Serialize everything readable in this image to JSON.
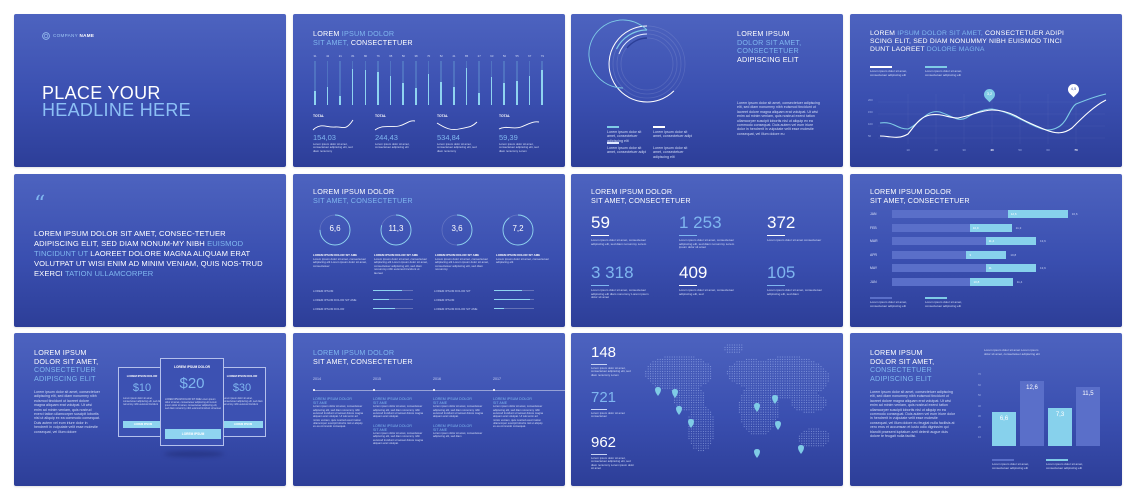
{
  "colors": {
    "slide_top": "#4d63bf",
    "slide_bottom": "#2d3e98",
    "accent_light_blue": "#7fcbe6",
    "accent_text_blue": "#7fb6ef",
    "white": "#ffffff",
    "bar_track": "#5a6fc9"
  },
  "slides": {
    "s1": {
      "company_icon": "globe-icon",
      "company_light": "COMPANY",
      "company_bold": "NAME",
      "headline_1": "PLACE YOUR",
      "headline_2": "HEADLINE HERE"
    },
    "s2": {
      "title_1a": "LOREM",
      "title_1b": "IPSUM DOLOR",
      "title_2a": "SIT AMET,",
      "title_2b": "CONSECTETUER",
      "bar_labels": [
        "31",
        "42",
        "21",
        "81",
        "80",
        "76",
        "65",
        "50",
        "38",
        "70",
        "52",
        "41",
        "85",
        "27",
        "63",
        "50",
        "55",
        "67",
        "79"
      ],
      "totals": [
        {
          "label": "TOTAL",
          "value": "154,03",
          "desc": "Lorem ipsum dolor sit amet, consectetuer adipiscing elit, sed diam nonummy"
        },
        {
          "label": "TOTAL",
          "value": "244,43",
          "desc": "Lorem ipsum dolor sit amet, consectetuer adipiscing elit"
        },
        {
          "label": "TOTAL",
          "value": "534,84",
          "desc": "Lorem ipsum dolor sit amet, consectetuer adipiscing elit, sed diam nonummy"
        },
        {
          "label": "TOTAL",
          "value": "59,39",
          "desc": "Lorem ipsum dolor sit amet, consectetuer adipiscing elit, sed diam nonummy Lorem"
        }
      ]
    },
    "s3": {
      "title_1": "LOREM IPSUM",
      "title_2": "DOLOR SIT AMET,",
      "title_3": "CONSECTETUER",
      "title_4": "ADIPISCING ELIT",
      "body": "Lorem ipsum dolor sit amet, consectetuer adipiscing elit, sed diam nonummy nibh euismod tincidunt ut laoreet dolore magna aliquam erat volutpat. Ut wisi enim ad minim veniam, quis nostrud exerci tation ullamcorper suscipit lobortis nisl ut aliquip ex ea commodo consequat. Duis autem vel eum iriure dolor in hendrerit in vulputate velit esse molestie consequat, vel illum dolore eu",
      "legend": [
        "Lorem ipsum dolor sit amet, consectetuer adipiscing elit",
        "Lorem ipsum dolor sit amet, consectetuer adipi",
        "Lorem ipsum dolor sit amet, consectetuer adipi",
        "Lorem ipsum dolor sit amet, consectetuer adipiscing elit"
      ]
    },
    "s4": {
      "title_a": "LOREM",
      "title_b": "IPSUM DOLOR SIT AMET,",
      "title_c": "CONSECTETUER ADIPI SCING ELIT, SED DIAM NONUMMY NIBH EUISMOD TINCI DUNT LAOREET",
      "title_d": "DOLORE MAGNA",
      "legend_1": "Lorem ipsum dolor sit amet, consectetuer adipiscing elit",
      "legend_2": "Lorem ipsum dolor sit amet, consectetuer adipiscing elit",
      "marker_1": "3,2",
      "marker_2": "4,5",
      "y_ticks": [
        "200",
        "150",
        "100",
        "50"
      ],
      "x_ticks": [
        "10",
        "20",
        "30",
        "40",
        "50",
        "60",
        "70"
      ]
    },
    "s5": {
      "quote_icon": "quote-icon",
      "q1": "LOREM IPSUM DOLOR SIT AMET, CONSEC-TETUER ADIPISCING ELIT, SED DIAM NONUM-MY NIBH",
      "q2": "EUISMOD TINCIDUNT UT",
      "q3": "LAOREET DOLORE MAGNA ALIQUAM ERAT VOLUTPAT UT WISI ENIM AD MINIM VENIAM, QUIS NOS-TRUD EXERCI",
      "q4": "TATION ULLAMCORPER"
    },
    "s6": {
      "title_1": "LOREM IPSUM DOLOR",
      "title_2": "SIT AMET, CONSECTETUER",
      "circles": [
        {
          "value": "6,6",
          "head": "LOREM IPSUM DOLOR SIT AME",
          "text": "Lorem ipsum dolor sit amet, consectetuer adipiscing elit Lorem ipsum dolor sit amet, consectetuer"
        },
        {
          "value": "11,3",
          "head": "LOREM IPSUM DOLOR SIT AME",
          "text": "Lorem ipsum dolor sit amet, consectetuer adipiscing elit Lorem ipsum dolor sit amet, consectetuer adipiscing elit, sed diam nonummy nibh euismod tincidunt ut laoreet"
        },
        {
          "value": "3,6",
          "head": "LOREM IPSUM DOLOR SIT AME",
          "text": "Lorem ipsum dolor sit amet, consectetuer adipiscing elit Lorem ipsum dolor sit amet, consectetuer adipiscing elit, sed diam nonummy"
        },
        {
          "value": "7,2",
          "head": "LOREM IPSUM DOLOR SIT AME",
          "text": "Lorem ipsum dolor sit amet, consectetuer adipiscing elit"
        }
      ],
      "bars": [
        {
          "label": "LOREM IPSUM",
          "pct": 72
        },
        {
          "label": "LOREM IPSUM DOLOR SIT AME",
          "pct": 40
        },
        {
          "label": "LOREM IPSUM DOLOR",
          "pct": 56
        },
        {
          "label": "LOREM IPSUM DOLOR SIT",
          "pct": 70
        },
        {
          "label": "LOREM IPSUM",
          "pct": 90
        },
        {
          "label": "LOREM IPSUM DOLOR SIT AME",
          "pct": 25
        }
      ]
    },
    "s7": {
      "title_1": "LOREM IPSUM DOLOR",
      "title_2": "SIT AMET, CONSECTETUER",
      "stats": [
        {
          "value": "59",
          "text": "Lorem ipsum dolor sit amet, consectetuer adipiscing elit, sed diam nonummy Lorem"
        },
        {
          "value": "1 253",
          "text": "Lorem ipsum dolor sit amet, consectetuer adipiscing elit, sed diam nonummy Lorem ipsum dolor sit amet"
        },
        {
          "value": "372",
          "text": "Lorem ipsum dolor sit amet consectetuer"
        },
        {
          "value": "3 318",
          "text": "Lorem ipsum dolor sit amet, consectetuer adipiscing elit diam nonummy Lorem ipsum dolor sit amet"
        },
        {
          "value": "409",
          "text": "Lorem ipsum dolor sit amet, consectetuer adipiscing elit, sed"
        },
        {
          "value": "105",
          "text": "Lorem ipsum dolor sit amet, consectetuer adipiscing elit, sed diam"
        }
      ]
    },
    "s8": {
      "title_1": "LOREM IPSUM DOLOR",
      "title_2": "SIT AMET, CONSECTETUER",
      "legend_1": "Lorem ipsum dolor sit amet, consectetuer adipiscing elit",
      "legend_2": "Lorem ipsum dolor sit amet, consectetuer adipiscing elit"
    },
    "s9": {
      "title_1": "LOREM IPSUM",
      "title_2": "DOLOR SIT AMET,",
      "title_3": "CONSECTETUER",
      "title_4": "ADIPISCING ELIT",
      "body": "Lorem ipsum dolor sit amet, consectetuer adipiscing elit, sed diam nonummy nibh euismod tincidunt ut laoreet dolore magna aliquam erat volutpat. Ut wisi enim ad minim veniam, quis nostrud exerci tation ullamcorper suscipit lobortis nisl ut aliquip ex ea commodo consequat. Duis autem vel eum iriure dolor in hendrerit in vulputate velit esse molestie consequat, vel illum dolore",
      "plans": [
        {
          "name": "LOREM IPSUM DOLOR",
          "price": "$10",
          "text": "Lorem ipsum dolor sit amet, consectetuer adipiscing elit, sed diam nonummy nibh euismod tincidunt",
          "button": "LOREM IPSUM"
        },
        {
          "name": "LOREM IPSUM DOLOR",
          "price": "$20",
          "text": "LOREM IPSUM DOLOR SIT AME Lorem ipsum dolor sit amet, consectetuer adipiscing elit Lorem ipsum dolor sit amet, consectetuer adipiscing elit, sed diam nonummy nibh euismod tincidunt ut laoreet",
          "button": "LOREM IPSUM"
        },
        {
          "name": "LOREM IPSUM DOLOR",
          "price": "$30",
          "text": "Lorem ipsum dolor sit amet, consectetuer adipiscing elit, sed diam nonummy nibh euismod tincidunt",
          "button": "LOREM IPSUM"
        }
      ]
    },
    "s10": {
      "title_1": "LOREM IPSUM DOLOR",
      "title_2": "SIT AMET, CONSECTETUER",
      "years": [
        "2014",
        "2015",
        "2016",
        "2017"
      ],
      "item_head_1": "LOREM IPSUM DOLOR",
      "item_head_2": "SIT AME",
      "item_text_long": "Lorem ipsum dolor sit amet, consectetuer adipiscing elit, sed diam nonummy nibh euismod tincidunt ut laoreet dolore magna aliquam erat volutpat. Ut wisi enim ad minim veniam, quis nostrud exerci tation ullamcorper suscipit lobortis nisl ut aliquip ex ea commodo consequat.",
      "item_text_mid": "Lorem ipsum dolor sit amet, consectetuer adipiscing elit, sed diam nonummy nibh euismod tincidunt ut laoreet dolore magna aliquam erat volutpat.",
      "item_text_short": "Lorem ipsum dolor sit amet, consectetuer adipiscing elit, sed diam"
    },
    "s11": {
      "stats": [
        {
          "value": "148",
          "text": "Lorem ipsum dolor sit amet, consectetuer adipiscing elit, sed diam nonummy Lorem"
        },
        {
          "value": "721",
          "text": "Lorem ipsum dolor sit amet consectetuer"
        },
        {
          "value": "962",
          "text": "Lorem ipsum dolor sit amet, consectetuer adipiscing elit, sed diam nonummy Lorem ipsum dolor sit amet"
        }
      ]
    },
    "s12": {
      "title_1": "LOREM IPSUM",
      "title_2": "DOLOR SIT AMET,",
      "title_3": "CONSECTETUER",
      "title_4": "ADIPISCING ELIT",
      "body": "Lorem ipsum dolor sit amet, consectetuer adipiscing elit, sed diam nonummy nibh euismod tincidunt ut laoreet dolore magna aliquam erat volutpat. Ut wisi enim ad minim veniam, quis nostrud exerci tation ullamcorper suscipit lobortis nisl ut aliquip ex ea commodo consequat. Duis autem vel eum iriure dolor in hendrerit in vulputate velit esse molestie consequat, vel illum dolore eu feugiat nulla facilisis at vero eros et accumsan et iusto odio dignissim qui blandit praesent luptatum zzril delenit augue duis dolore te feugait nulla facilisi.",
      "chart_note": "Lorem ipsum dolor sit amet Lorem ipsum dolor sit amet, consectetuer adipiscing elit",
      "legend_1": "Lorem ipsum dolor sit amet, consectetuer adipiscing elit",
      "legend_2": "Lorem ipsum dolor sit amet, consectetuer adipiscing elit"
    }
  },
  "chart_data": [
    {
      "type": "bar",
      "title": "LOREM IPSUM DOLOR SIT AMET, CONSECTETUER",
      "categories": [
        "1",
        "2",
        "3",
        "4",
        "5",
        "6",
        "7",
        "8",
        "9",
        "10",
        "11",
        "12",
        "13",
        "14",
        "15",
        "16",
        "17",
        "18",
        "19"
      ],
      "values": [
        31,
        42,
        21,
        81,
        80,
        76,
        65,
        50,
        38,
        70,
        52,
        41,
        85,
        27,
        63,
        50,
        55,
        67,
        79
      ],
      "ylim": [
        0,
        100
      ],
      "totals": [
        154.03,
        244.43,
        534.84,
        59.39
      ]
    },
    {
      "type": "pie",
      "title": "LOREM IPSUM DOLOR SIT AMET, CONSECTETUER ADIPISCING ELIT",
      "series": [
        {
          "name": "ring-1",
          "values": [
            75
          ]
        },
        {
          "name": "ring-2",
          "values": [
            25
          ]
        },
        {
          "name": "ring-3",
          "values": [
            20
          ]
        },
        {
          "name": "ring-4",
          "values": [
            18
          ]
        }
      ]
    },
    {
      "type": "line",
      "title": "LOREM IPSUM DOLOR SIT AMET, CONSECTETUER ADIPISCING ELIT, SED DIAM NONUMMY NIBH EUISMOD TINCIDUNT LAOREET DOLORE MAGNA",
      "x": [
        0,
        10,
        20,
        30,
        40,
        50,
        60,
        70,
        80
      ],
      "series": [
        {
          "name": "white",
          "values": [
            55,
            50,
            130,
            110,
            135,
            100,
            85,
            180,
            210
          ]
        },
        {
          "name": "light-blue",
          "values": [
            95,
            75,
            110,
            110,
            160,
            130,
            60,
            90,
            180
          ]
        }
      ],
      "annotations": [
        {
          "x": 40,
          "label": "3,2"
        },
        {
          "x": 70,
          "label": "4,5"
        }
      ],
      "ylim": [
        0,
        250
      ],
      "yticks": [
        50,
        100,
        150,
        200
      ],
      "xticks": [
        10,
        20,
        30,
        40,
        50,
        60,
        70
      ]
    },
    {
      "type": "bar",
      "title": "LOREM IPSUM DOLOR SIT AMET, CONSECTETUER",
      "orientation": "horizontal",
      "categories": [
        "JAN",
        "FEB",
        "MAR",
        "APR",
        "MAY",
        "JUN"
      ],
      "series": [
        {
          "name": "segment",
          "values": [
            12.6,
            10.9,
            11.4,
            3.0,
            11.0,
            10.8
          ]
        },
        {
          "name": "total",
          "values": [
            16.6,
            11.3,
            13.6,
            10.8,
            13.6,
            11.4
          ]
        }
      ]
    },
    {
      "type": "bar",
      "title": "LOREM IPSUM DOLOR SIT AMET, CONSECTETUER ADIPISCING ELIT",
      "categories": [
        "A",
        "B"
      ],
      "series": [
        {
          "name": "light",
          "values": [
            6.6,
            7.3
          ]
        },
        {
          "name": "dark",
          "values": [
            12.6,
            11.5
          ]
        }
      ],
      "yticks": [
        10,
        20,
        30,
        40,
        50,
        60,
        70
      ],
      "ylim": [
        0,
        70
      ]
    }
  ]
}
